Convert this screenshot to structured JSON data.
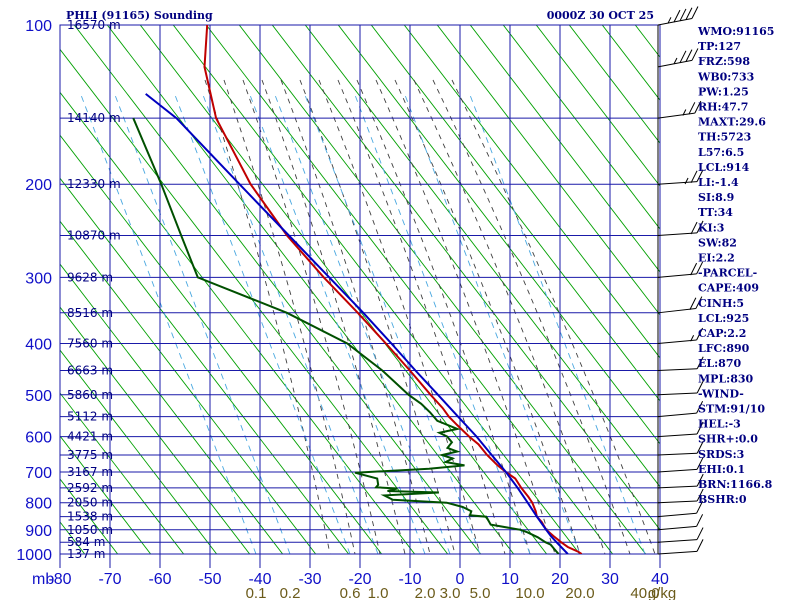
{
  "header": {
    "station": "PHLI (91165) Sounding",
    "time": "0000Z 30 OCT 25"
  },
  "colors": {
    "grid": "#1a1aa8",
    "dry_adiabat": "#00a000",
    "moist_adiabat": "#404040",
    "mixing_ratio": "#4aa8e0",
    "temperature": "#c00000",
    "dewpoint": "#005000",
    "parcel": "#0000c0",
    "index_text": "#000080"
  },
  "chart_data": {
    "type": "line",
    "title": "PHLI (91165) Sounding",
    "ylabel": "mb",
    "xlabel": "",
    "y_scale": "log",
    "ylim": [
      1000,
      100
    ],
    "xlim": [
      -80,
      40
    ],
    "x_ticks": [
      -80,
      -70,
      -60,
      -50,
      -40,
      -30,
      -20,
      -10,
      0,
      10,
      20,
      30,
      40
    ],
    "x_tick_labels": [
      "-80",
      "-70",
      "-60",
      "-50",
      "-40",
      "-30",
      "-20",
      "-10",
      "0",
      "10",
      "20",
      "30",
      "40"
    ],
    "y_ticks": [
      100,
      200,
      300,
      400,
      500,
      600,
      700,
      800,
      900,
      1000
    ],
    "y_tick_labels": [
      "100",
      "200",
      "300",
      "400",
      "500",
      "600",
      "700",
      "800",
      "900",
      "1000"
    ],
    "height_labels": [
      {
        "p": 100,
        "label": "16570 m"
      },
      {
        "p": 150,
        "label": "14140 m"
      },
      {
        "p": 200,
        "label": "12330 m"
      },
      {
        "p": 250,
        "label": "10870 m"
      },
      {
        "p": 300,
        "label": "9628 m"
      },
      {
        "p": 350,
        "label": "8516 m"
      },
      {
        "p": 400,
        "label": "7560 m"
      },
      {
        "p": 450,
        "label": "6663 m"
      },
      {
        "p": 500,
        "label": "5860 m"
      },
      {
        "p": 550,
        "label": "5112 m"
      },
      {
        "p": 600,
        "label": "4421 m"
      },
      {
        "p": 650,
        "label": "3775 m"
      },
      {
        "p": 700,
        "label": "3167 m"
      },
      {
        "p": 750,
        "label": "2592 m"
      },
      {
        "p": 800,
        "label": "2050 m"
      },
      {
        "p": 850,
        "label": "1538 m"
      },
      {
        "p": 900,
        "label": "1050 m"
      },
      {
        "p": 950,
        "label": "584 m"
      },
      {
        "p": 1000,
        "label": "137 m"
      }
    ],
    "mixing_ratio_labels": [
      "0.1",
      "0.2",
      "0.6",
      "1.0",
      "2.0",
      "3.0",
      "5.0",
      "10.0",
      "20.0",
      "40.0"
    ],
    "mixing_ratio_unit": "g/kg",
    "series": [
      {
        "key": "temperature",
        "points": [
          [
            1000,
            26
          ],
          [
            990,
            25.2
          ],
          [
            970,
            22.8
          ],
          [
            950,
            21.2
          ],
          [
            925,
            19.4
          ],
          [
            900,
            17.6
          ],
          [
            870,
            16.4
          ],
          [
            850,
            15.2
          ],
          [
            830,
            14.8
          ],
          [
            800,
            13.8
          ],
          [
            780,
            12.8
          ],
          [
            750,
            11
          ],
          [
            720,
            9.4
          ],
          [
            700,
            7.2
          ],
          [
            680,
            5.2
          ],
          [
            650,
            2.6
          ],
          [
            620,
            0.4
          ],
          [
            600,
            -1.8
          ],
          [
            570,
            -4.8
          ],
          [
            550,
            -6.8
          ],
          [
            530,
            -8.4
          ],
          [
            500,
            -11.4
          ],
          [
            450,
            -16.6
          ],
          [
            400,
            -22.6
          ],
          [
            350,
            -29.6
          ],
          [
            300,
            -38
          ],
          [
            250,
            -47.2
          ],
          [
            200,
            -56.6
          ],
          [
            150,
            -66
          ],
          [
            120,
            -70
          ],
          [
            100,
            -70.6
          ]
        ]
      },
      {
        "key": "dewpoint",
        "points": [
          [
            1000,
            21
          ],
          [
            980,
            20
          ],
          [
            960,
            19
          ],
          [
            950,
            17.8
          ],
          [
            930,
            16
          ],
          [
            910,
            13.6
          ],
          [
            900,
            12
          ],
          [
            880,
            5.4
          ],
          [
            860,
            4.6
          ],
          [
            850,
            4.2
          ],
          [
            845,
            0.6
          ],
          [
            830,
            0.8
          ],
          [
            815,
            -1.2
          ],
          [
            800,
            -4.8
          ],
          [
            790,
            -16.6
          ],
          [
            775,
            -18.6
          ],
          [
            765,
            -6.8
          ],
          [
            760,
            -18
          ],
          [
            752,
            -16
          ],
          [
            748,
            -20.6
          ],
          [
            740,
            -20.2
          ],
          [
            720,
            -20.6
          ],
          [
            702,
            -25.6
          ],
          [
            690,
            -9.6
          ],
          [
            680,
            -2
          ],
          [
            670,
            -6.2
          ],
          [
            660,
            -4.8
          ],
          [
            650,
            -7.2
          ],
          [
            640,
            -4
          ],
          [
            630,
            -6.2
          ],
          [
            615,
            -5.4
          ],
          [
            600,
            -6.6
          ],
          [
            590,
            -8.4
          ],
          [
            580,
            -4.6
          ],
          [
            560,
            -9.2
          ],
          [
            540,
            -11
          ],
          [
            520,
            -13.2
          ],
          [
            500,
            -16.2
          ],
          [
            450,
            -22.6
          ],
          [
            400,
            -31
          ],
          [
            350,
            -45
          ],
          [
            300,
            -65.4
          ],
          [
            250,
            -70.2
          ],
          [
            200,
            -76
          ],
          [
            150,
            -84
          ]
        ]
      },
      {
        "key": "parcel",
        "points": [
          [
            1000,
            23
          ],
          [
            950,
            20.2
          ],
          [
            925,
            18.8
          ],
          [
            900,
            17.6
          ],
          [
            850,
            15.2
          ],
          [
            800,
            12.8
          ],
          [
            750,
            10.2
          ],
          [
            700,
            7.2
          ],
          [
            650,
            3.6
          ],
          [
            600,
            -0.2
          ],
          [
            550,
            -4.8
          ],
          [
            500,
            -9.8
          ],
          [
            450,
            -15.4
          ],
          [
            400,
            -21.4
          ],
          [
            350,
            -28.4
          ],
          [
            300,
            -36.8
          ],
          [
            250,
            -46.8
          ],
          [
            200,
            -59
          ],
          [
            150,
            -74.6
          ],
          [
            135,
            -82
          ]
        ]
      }
    ]
  },
  "indices": [
    "WMO:91165",
    "TP:127",
    "FRZ:598",
    "WB0:733",
    "PW:1.25",
    "RH:47.7",
    "MAXT:29.6",
    "TH:5723",
    "L57:6.5",
    "LCL:914",
    "LI:-1.4",
    "SI:8.9",
    "TT:34",
    "KI:3",
    "SW:82",
    "EI:2.2",
    "-PARCEL-",
    "CAPE:409",
    "CINH:5",
    "LCL:925",
    "CAP:2.2",
    "LFC:890",
    "EL:870",
    "MPL:830",
    "-WIND-",
    "STM:91/10",
    "HEL:-3",
    "SHR+:0.0",
    "SRDS:3",
    "EHI:0.1",
    "BRN:1166.8",
    "BSHR:0"
  ],
  "wind_barbs": [
    {
      "p": 1000,
      "dir": 95,
      "spd": 10
    },
    {
      "p": 950,
      "dir": 95,
      "spd": 10
    },
    {
      "p": 900,
      "dir": 100,
      "spd": 10
    },
    {
      "p": 850,
      "dir": 100,
      "spd": 10
    },
    {
      "p": 800,
      "dir": 90,
      "spd": 10
    },
    {
      "p": 750,
      "dir": 90,
      "spd": 10
    },
    {
      "p": 700,
      "dir": 85,
      "spd": 10
    },
    {
      "p": 650,
      "dir": 90,
      "spd": 10
    },
    {
      "p": 600,
      "dir": 95,
      "spd": 10
    },
    {
      "p": 550,
      "dir": 100,
      "spd": 10
    },
    {
      "p": 500,
      "dir": 90,
      "spd": 10
    },
    {
      "p": 450,
      "dir": 90,
      "spd": 10
    },
    {
      "p": 400,
      "dir": 80,
      "spd": 15
    },
    {
      "p": 350,
      "dir": 75,
      "spd": 20
    },
    {
      "p": 300,
      "dir": 80,
      "spd": 20
    },
    {
      "p": 250,
      "dir": 85,
      "spd": 20
    },
    {
      "p": 200,
      "dir": 85,
      "spd": 25
    },
    {
      "p": 150,
      "dir": 70,
      "spd": 25
    },
    {
      "p": 120,
      "dir": 60,
      "spd": 35
    },
    {
      "p": 100,
      "dir": 60,
      "spd": 45
    }
  ]
}
